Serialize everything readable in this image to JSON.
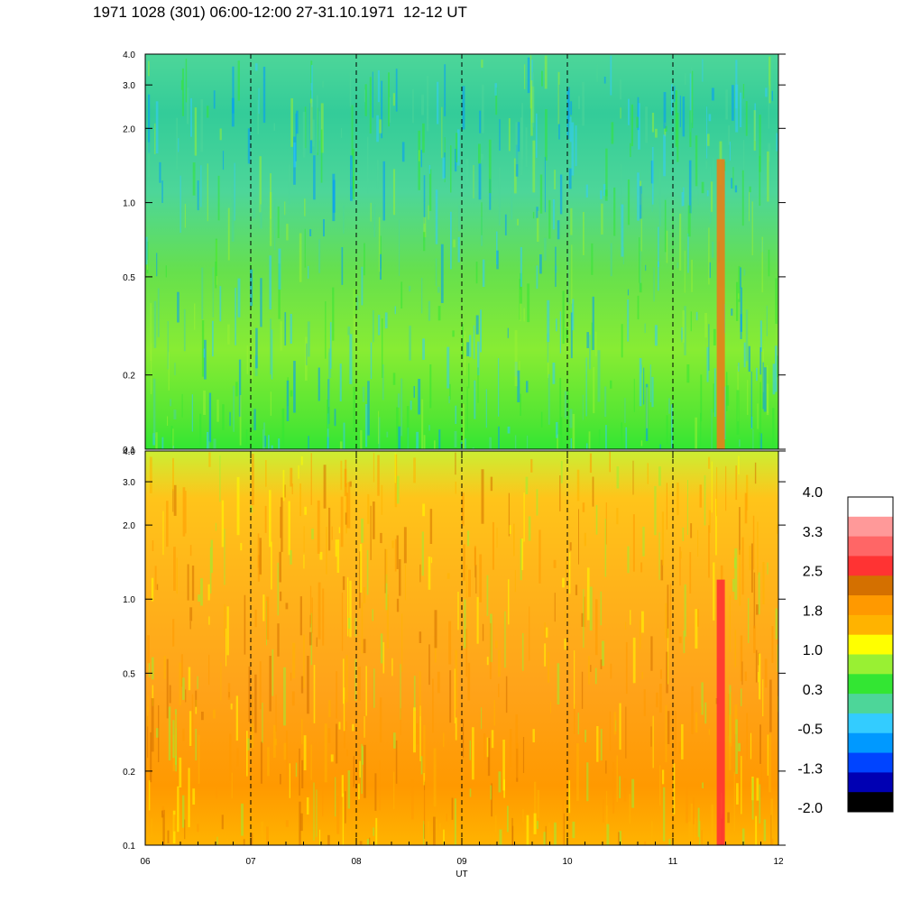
{
  "title": "1971 1028 (301) 06:00-12:00 27-31.10.1971  12-12 UT",
  "chart_data": [
    {
      "type": "heatmap",
      "panel": "upper",
      "x_range": [
        6,
        12
      ],
      "y_scale": "log",
      "ylim": [
        0.1,
        4.0
      ],
      "y_ticks": [
        "0.1",
        "0.2",
        "0.5",
        "1.0",
        "2.0",
        "3.0",
        "4.0"
      ],
      "x_gridlines": [
        7,
        8,
        9,
        10,
        11
      ],
      "dominant_colors": [
        "#33e633",
        "#99f033",
        "#4dd699",
        "#33ccff",
        "#0099ff"
      ],
      "features": [
        {
          "x": 11.45,
          "y_from": 0.1,
          "y_to": 1.5,
          "color": "#e6801a"
        }
      ]
    },
    {
      "type": "heatmap",
      "panel": "lower",
      "x_range": [
        6,
        12
      ],
      "y_scale": "log",
      "ylim": [
        0.1,
        4.0
      ],
      "y_ticks": [
        "0.1",
        "0.2",
        "0.5",
        "1.0",
        "2.0",
        "3.0",
        "4.0"
      ],
      "x_ticks": [
        "06",
        "07",
        "08",
        "09",
        "10",
        "11",
        "12"
      ],
      "xlabel": "UT",
      "x_gridlines": [
        7,
        8,
        9,
        10,
        11
      ],
      "dominant_colors": [
        "#ff9900",
        "#ffb300",
        "#ffff00",
        "#99f033",
        "#d47000"
      ],
      "features": [
        {
          "x": 11.45,
          "y_from": 0.1,
          "y_to": 1.2,
          "color": "#ff3333"
        }
      ]
    }
  ],
  "colorbar": {
    "labels": [
      "4.0",
      "3.3",
      "2.5",
      "1.8",
      "1.0",
      "0.3",
      "-0.5",
      "-1.3",
      "-2.0"
    ],
    "colors": [
      "#ffffff",
      "#ff9999",
      "#ff6666",
      "#ff3333",
      "#d47000",
      "#ff9900",
      "#ffb300",
      "#ffff00",
      "#99f033",
      "#33e633",
      "#4dd699",
      "#33ccff",
      "#0099ff",
      "#0044ff",
      "#0000b3",
      "#000000"
    ]
  }
}
